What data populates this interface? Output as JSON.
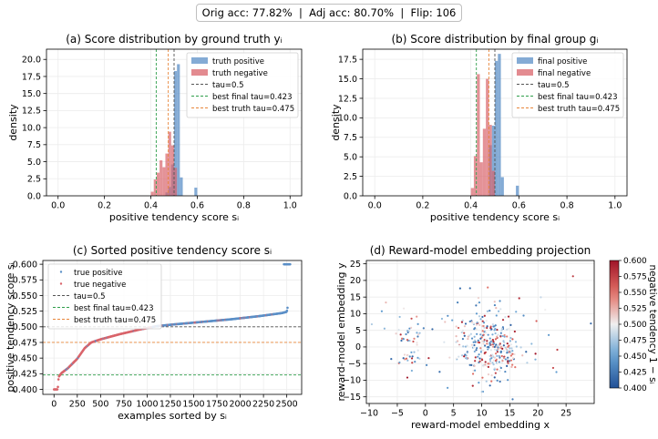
{
  "suptitle": "Orig acc: 77.82%  |  Adj acc: 80.70%  |  Flip: 106",
  "colors": {
    "positive": "#5b8fc7",
    "negative": "#d9646b",
    "tau": "#555555",
    "best_final": "#2e9e4a",
    "best_truth": "#e8853a"
  },
  "chart_data": [
    {
      "type": "bar",
      "title": "(a) Score distribution by ground truth yᵢ",
      "xlabel": "positive tendency score sᵢ",
      "ylabel": "density",
      "xlim": [
        -0.05,
        1.05
      ],
      "ylim": [
        0,
        21.5
      ],
      "xticks": [
        0.0,
        0.2,
        0.4,
        0.6,
        0.8,
        1.0
      ],
      "xtick_labels": [
        "0.0",
        "0.2",
        "0.4",
        "0.6",
        "0.8",
        "1.0"
      ],
      "yticks": [
        0,
        2.5,
        5,
        7.5,
        10,
        12.5,
        15,
        17.5,
        20
      ],
      "ytick_labels": [
        "0.0",
        "2.5",
        "5.0",
        "7.5",
        "10.0",
        "12.5",
        "15.0",
        "17.5",
        "20.0"
      ],
      "bin_width": 0.0125,
      "series": [
        {
          "name": "truth positive",
          "color": "#5b8fc7",
          "bins": [
            [
              0.4625,
              0.5
            ],
            [
              0.475,
              1.3
            ],
            [
              0.4875,
              4.6
            ],
            [
              0.5,
              18.3
            ],
            [
              0.5125,
              19.3
            ],
            [
              0.525,
              2.7
            ],
            [
              0.5875,
              1.2
            ]
          ]
        },
        {
          "name": "truth negative",
          "color": "#d9646b",
          "bins": [
            [
              0.4,
              0.6
            ],
            [
              0.4125,
              2.4
            ],
            [
              0.425,
              3.4
            ],
            [
              0.4375,
              5.2
            ],
            [
              0.45,
              4.2
            ],
            [
              0.4625,
              6.2
            ],
            [
              0.475,
              9.4
            ],
            [
              0.4875,
              7.4
            ],
            [
              0.5,
              4.1
            ]
          ]
        }
      ],
      "vlines": [
        {
          "name": "tau=0.5",
          "x": 0.5,
          "color": "#555555"
        },
        {
          "name": "best final tau=0.423",
          "x": 0.423,
          "color": "#2e9e4a"
        },
        {
          "name": "best truth tau=0.475",
          "x": 0.475,
          "color": "#e8853a"
        }
      ],
      "legend_position": "top-right",
      "grid": true
    },
    {
      "type": "bar",
      "title": "(b) Score distribution by final group gᵢ",
      "xlabel": "positive tendency score sᵢ",
      "ylabel": "density",
      "xlim": [
        -0.05,
        1.05
      ],
      "ylim": [
        0,
        18.8
      ],
      "xticks": [
        0.0,
        0.2,
        0.4,
        0.6,
        0.8,
        1.0
      ],
      "xtick_labels": [
        "0.0",
        "0.2",
        "0.4",
        "0.6",
        "0.8",
        "1.0"
      ],
      "yticks": [
        0,
        2.5,
        5,
        7.5,
        10,
        12.5,
        15,
        17.5
      ],
      "ytick_labels": [
        "0.0",
        "2.5",
        "5.0",
        "7.5",
        "10.0",
        "12.5",
        "15.0",
        "17.5"
      ],
      "bin_width": 0.0125,
      "series": [
        {
          "name": "final positive",
          "color": "#5b8fc7",
          "bins": [
            [
              0.475,
              6.5
            ],
            [
              0.4875,
              9.0
            ],
            [
              0.5,
              17.3
            ],
            [
              0.5125,
              18.2
            ],
            [
              0.525,
              2.4
            ],
            [
              0.5875,
              1.3
            ]
          ]
        },
        {
          "name": "final negative",
          "color": "#d9646b",
          "bins": [
            [
              0.4,
              1.0
            ],
            [
              0.4125,
              5.1
            ],
            [
              0.425,
              15.6
            ],
            [
              0.4375,
              4.3
            ],
            [
              0.45,
              8.6
            ],
            [
              0.4625,
              15.0
            ],
            [
              0.475,
              9.1
            ],
            [
              0.4875,
              3.2
            ]
          ]
        }
      ],
      "vlines": [
        {
          "name": "tau=0.5",
          "x": 0.5,
          "color": "#555555"
        },
        {
          "name": "best final tau=0.423",
          "x": 0.423,
          "color": "#2e9e4a"
        },
        {
          "name": "best truth tau=0.475",
          "x": 0.475,
          "color": "#e8853a"
        }
      ],
      "legend_position": "top-right",
      "grid": true
    },
    {
      "type": "scatter",
      "title": "(c) Sorted positive tendency score sᵢ",
      "xlabel": "examples sorted by sᵢ",
      "ylabel": "positive tendency score sᵢ",
      "xlim": [
        -120,
        2660
      ],
      "ylim": [
        0.392,
        0.606
      ],
      "xticks": [
        0,
        250,
        500,
        750,
        1000,
        1250,
        1500,
        1750,
        2000,
        2250,
        2500
      ],
      "xtick_labels": [
        "0",
        "250",
        "500",
        "750",
        "1000",
        "1250",
        "1500",
        "1750",
        "2000",
        "2250",
        "2500"
      ],
      "yticks": [
        0.4,
        0.425,
        0.45,
        0.475,
        0.5,
        0.525,
        0.55,
        0.575,
        0.6
      ],
      "ytick_labels": [
        "0.400",
        "0.425",
        "0.450",
        "0.475",
        "0.500",
        "0.525",
        "0.550",
        "0.575",
        "0.600"
      ],
      "series": [
        {
          "name": "true positive",
          "color": "#5b8fc7"
        },
        {
          "name": "true negative",
          "color": "#d9646b"
        }
      ],
      "curve": [
        [
          0,
          0.4
        ],
        [
          40,
          0.4
        ],
        [
          50,
          0.42
        ],
        [
          80,
          0.426
        ],
        [
          150,
          0.434
        ],
        [
          250,
          0.449
        ],
        [
          330,
          0.466
        ],
        [
          400,
          0.475
        ],
        [
          500,
          0.48
        ],
        [
          700,
          0.488
        ],
        [
          900,
          0.495
        ],
        [
          1100,
          0.501
        ],
        [
          1300,
          0.504
        ],
        [
          1600,
          0.508
        ],
        [
          1900,
          0.512
        ],
        [
          2200,
          0.517
        ],
        [
          2450,
          0.522
        ],
        [
          2500,
          0.524
        ],
        [
          2510,
          0.532
        ]
      ],
      "outliers": {
        "x_range": [
          2470,
          2540
        ],
        "y": 0.6
      },
      "hlines": [
        {
          "name": "tau=0.5",
          "y": 0.5,
          "color": "#555555"
        },
        {
          "name": "best final tau=0.423",
          "y": 0.423,
          "color": "#2e9e4a"
        },
        {
          "name": "best truth tau=0.475",
          "y": 0.475,
          "color": "#e8853a"
        }
      ],
      "legend_position": "top-left",
      "grid": true
    },
    {
      "type": "scatter",
      "title": "(d) Reward-model embedding projection",
      "xlabel": "reward-model embedding x",
      "ylabel": "reward-model embedding y",
      "xlim": [
        -10.5,
        30
      ],
      "ylim": [
        -17,
        26
      ],
      "xticks": [
        -10,
        -5,
        0,
        5,
        10,
        15,
        20,
        25
      ],
      "xtick_labels": [
        "−10",
        "−5",
        "0",
        "5",
        "10",
        "15",
        "20",
        "25"
      ],
      "yticks": [
        -15,
        -10,
        -5,
        0,
        5,
        10,
        15,
        20,
        25
      ],
      "ytick_labels": [
        "−15",
        "−10",
        "−5",
        "0",
        "5",
        "10",
        "15",
        "20",
        "25"
      ],
      "colorbar": {
        "label": "negative tendency 1 − sᵢ",
        "range": [
          0.4,
          0.6
        ],
        "ticks": [
          0.4,
          0.425,
          0.45,
          0.475,
          0.5,
          0.525,
          0.55,
          0.575,
          0.6
        ],
        "tick_labels": [
          "0.400",
          "0.425",
          "0.450",
          "0.475",
          "0.500",
          "0.525",
          "0.550",
          "0.575",
          "0.600"
        ]
      },
      "clusters": [
        {
          "cx": 11,
          "cy": 1,
          "sx": 2.5,
          "sy": 5.5,
          "n": 230
        },
        {
          "cx": 13,
          "cy": -3,
          "sx": 2.0,
          "sy": 2.0,
          "n": 70
        },
        {
          "cx": -3,
          "cy": 4,
          "sx": 1.5,
          "sy": 1.5,
          "n": 25
        },
        {
          "cx": -3,
          "cy": -3,
          "sx": 1.5,
          "sy": 1.0,
          "n": 20
        },
        {
          "cx": 6,
          "cy": 3,
          "sx": 10,
          "sy": 9,
          "n": 70
        }
      ],
      "grid": true
    }
  ]
}
